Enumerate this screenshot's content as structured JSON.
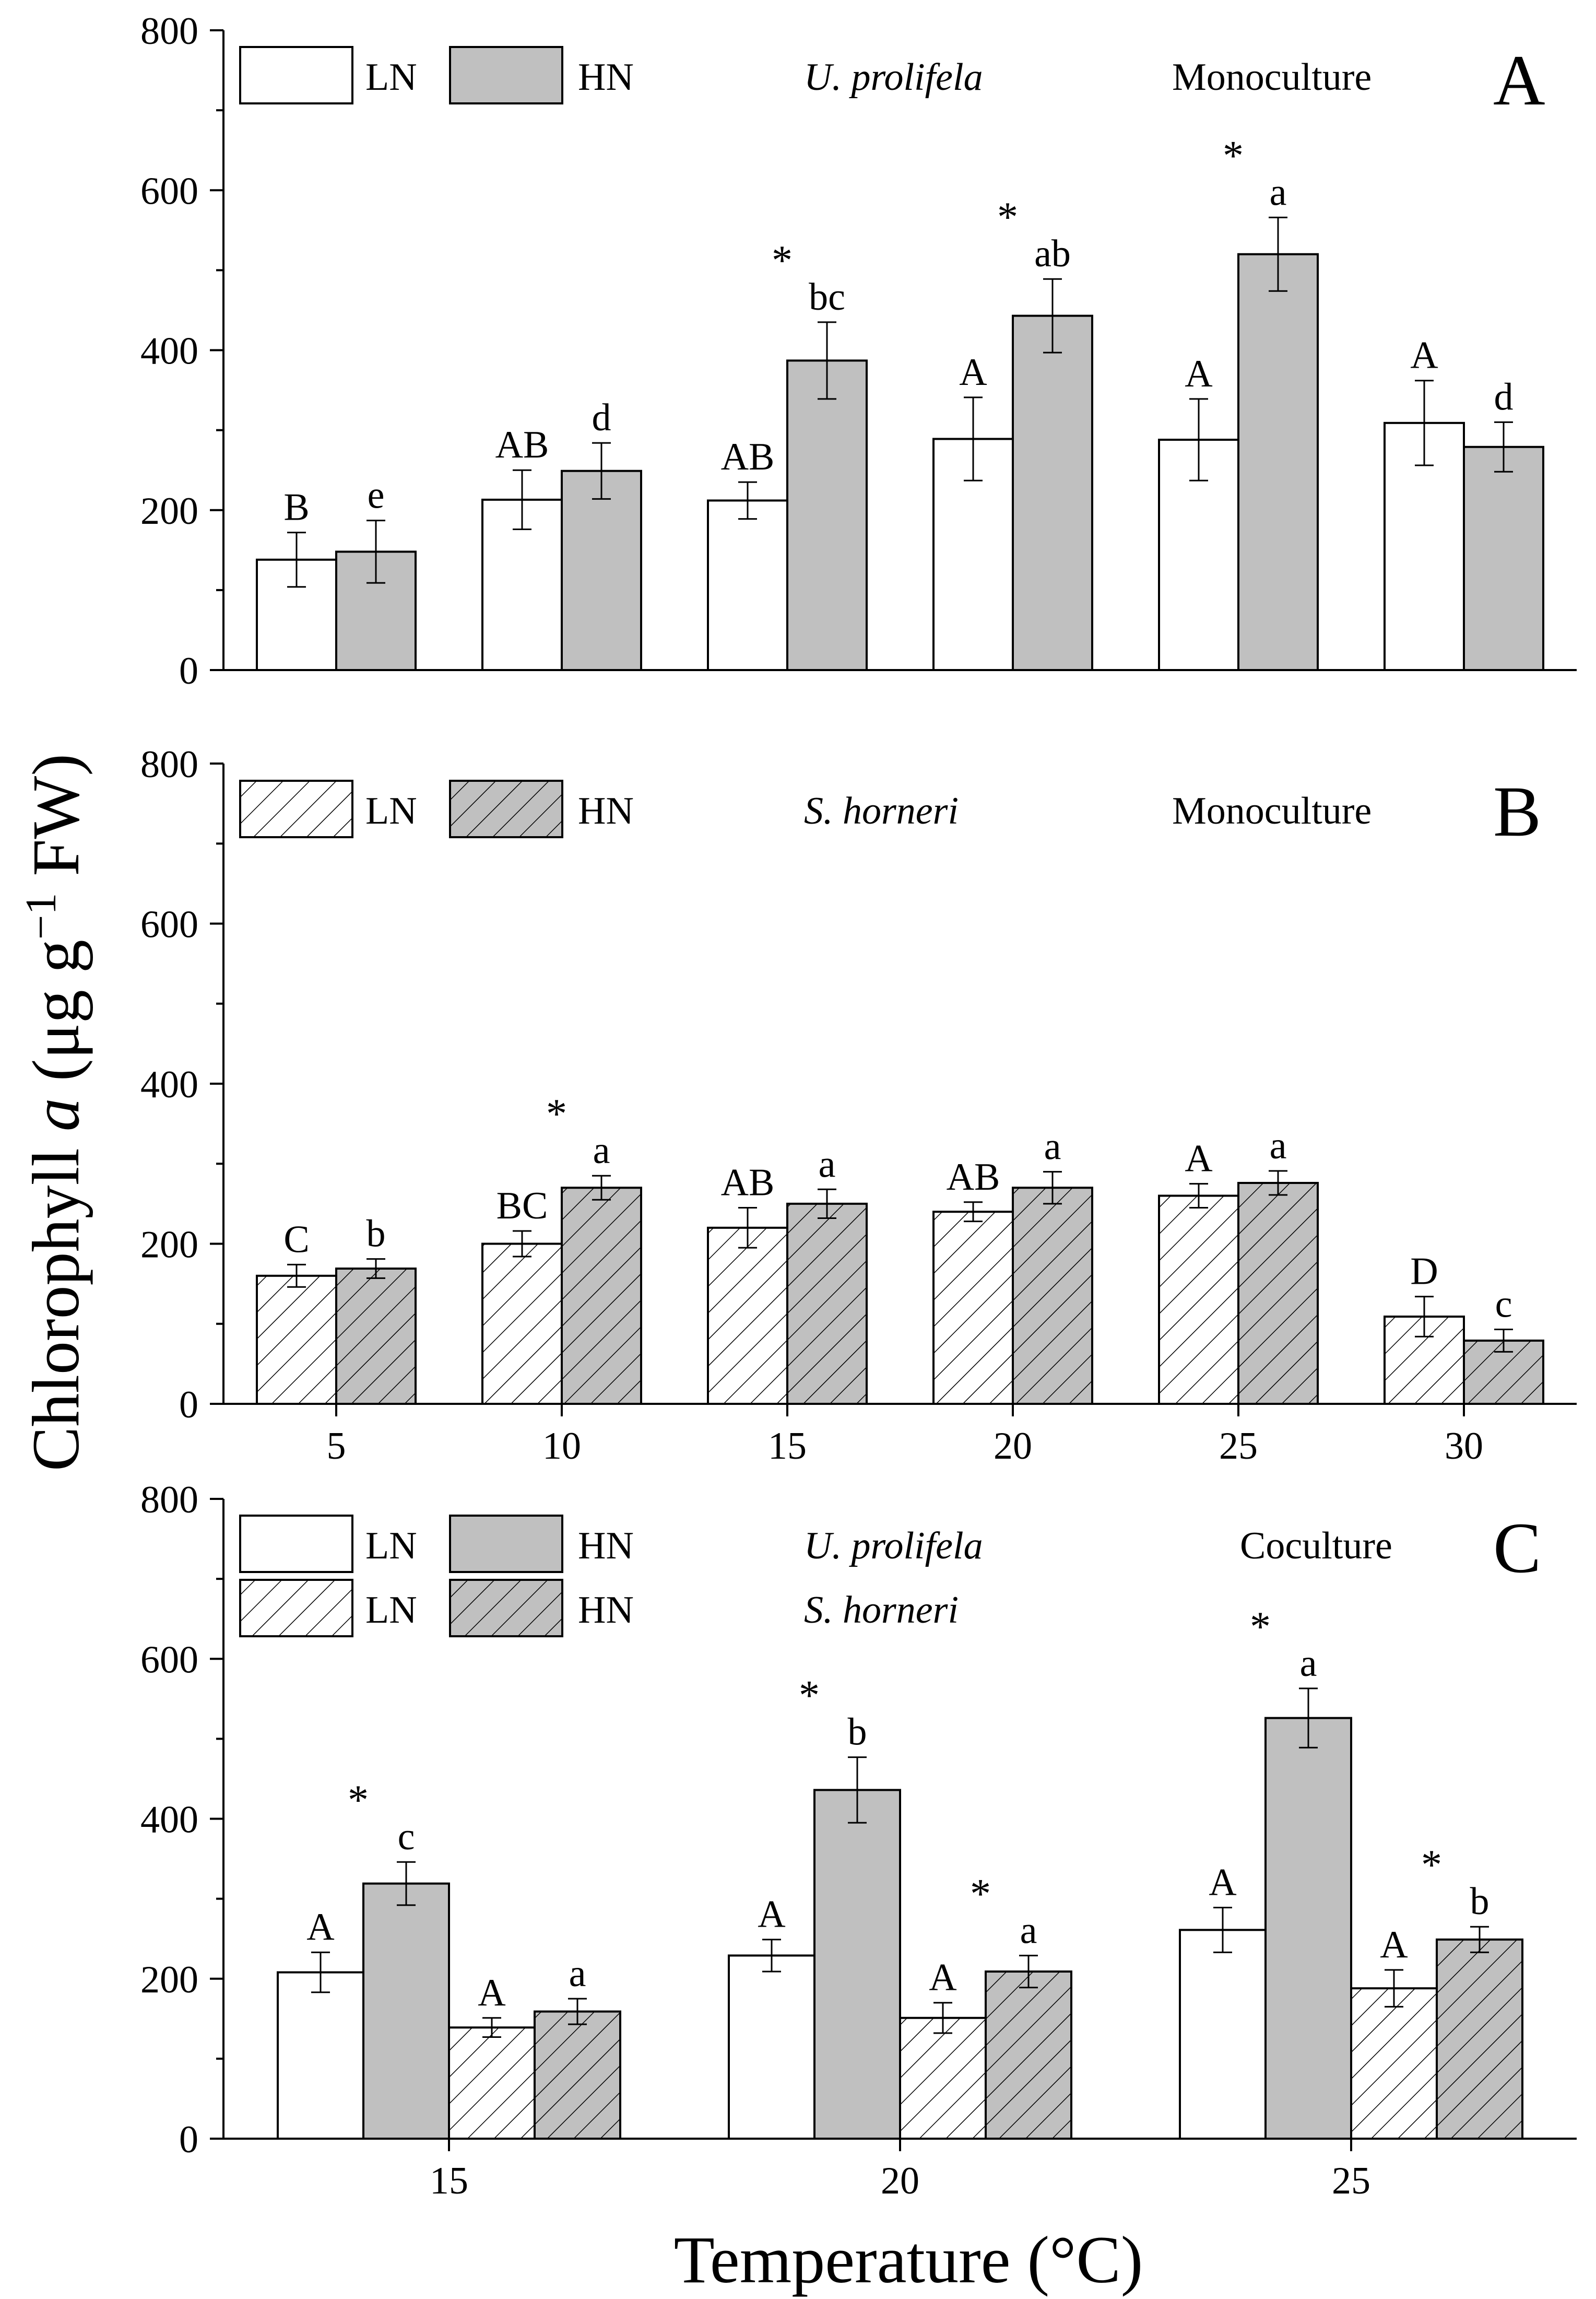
{
  "figure": {
    "ylabel": {
      "prefix": "Chlorophyll ",
      "italic": "a",
      "unit_open": " (μg g",
      "exponent": "−1",
      "unit_close": " FW)"
    },
    "xlabel": "Temperature (°C)"
  },
  "colors": {
    "ln_fill": "#ffffff",
    "hn_fill": "#c0c0c0",
    "stroke": "#000000"
  },
  "legend": {
    "ln": "LN",
    "hn": "HN"
  },
  "chart_data": [
    {
      "panel": "A",
      "type": "bar",
      "species": "U. prolifela",
      "culture": "Monoculture",
      "ylim": [
        0,
        800
      ],
      "yticks": [
        0,
        200,
        400,
        600,
        800
      ],
      "categories": [
        "5",
        "10",
        "15",
        "20",
        "25",
        "30"
      ],
      "show_category_labels": false,
      "series": [
        {
          "name": "LN",
          "hatched": false,
          "filled": false,
          "values": [
            138,
            213,
            212,
            289,
            288,
            309
          ],
          "errors": [
            34,
            37,
            23,
            52,
            51,
            53
          ],
          "letters": [
            "B",
            "AB",
            "AB",
            "A",
            "A",
            "A"
          ],
          "stars": [
            false,
            false,
            false,
            false,
            false,
            false
          ]
        },
        {
          "name": "HN",
          "hatched": false,
          "filled": true,
          "values": [
            148,
            249,
            387,
            443,
            520,
            279
          ],
          "errors": [
            39,
            35,
            48,
            46,
            46,
            31
          ],
          "letters": [
            "e",
            "d",
            "bc",
            "ab",
            "a",
            "d"
          ],
          "stars": [
            false,
            false,
            true,
            true,
            true,
            false
          ]
        }
      ]
    },
    {
      "panel": "B",
      "type": "bar",
      "species": "S. horneri",
      "culture": "Monoculture",
      "ylim": [
        0,
        800
      ],
      "yticks": [
        0,
        200,
        400,
        600,
        800
      ],
      "categories": [
        "5",
        "10",
        "15",
        "20",
        "25",
        "30"
      ],
      "show_category_labels": true,
      "series": [
        {
          "name": "LN",
          "hatched": true,
          "filled": false,
          "values": [
            160,
            200,
            220,
            240,
            260,
            109
          ],
          "errors": [
            14,
            16,
            25,
            12,
            15,
            25
          ],
          "letters": [
            "C",
            "BC",
            "AB",
            "AB",
            "A",
            "D"
          ],
          "stars": [
            false,
            false,
            false,
            false,
            false,
            false
          ]
        },
        {
          "name": "HN",
          "hatched": true,
          "filled": true,
          "values": [
            169,
            270,
            250,
            270,
            276,
            79
          ],
          "errors": [
            12,
            15,
            18,
            20,
            15,
            14
          ],
          "letters": [
            "b",
            "a",
            "a",
            "a",
            "a",
            "c"
          ],
          "stars": [
            false,
            true,
            false,
            false,
            false,
            false
          ]
        }
      ]
    },
    {
      "panel": "C",
      "type": "bar",
      "species": "U. prolifela",
      "species2": "S. horneri",
      "culture": "Coculture",
      "ylim": [
        0,
        800
      ],
      "yticks": [
        0,
        200,
        400,
        600,
        800
      ],
      "categories": [
        "15",
        "20",
        "25"
      ],
      "show_category_labels": true,
      "series": [
        {
          "name": "LN",
          "group": "U. prolifela",
          "hatched": false,
          "filled": false,
          "values": [
            208,
            229,
            261
          ],
          "errors": [
            25,
            20,
            28
          ],
          "letters": [
            "A",
            "A",
            "A"
          ],
          "stars": [
            false,
            false,
            false
          ]
        },
        {
          "name": "HN",
          "group": "U. prolifela",
          "hatched": false,
          "filled": true,
          "values": [
            319,
            436,
            526
          ],
          "errors": [
            27,
            41,
            37
          ],
          "letters": [
            "c",
            "b",
            "a"
          ],
          "stars": [
            true,
            true,
            true
          ]
        },
        {
          "name": "LN",
          "group": "S. horneri",
          "hatched": true,
          "filled": false,
          "values": [
            139,
            151,
            188
          ],
          "errors": [
            12,
            19,
            23
          ],
          "letters": [
            "A",
            "A",
            "A"
          ],
          "stars": [
            false,
            false,
            false
          ]
        },
        {
          "name": "HN",
          "group": "S. horneri",
          "hatched": true,
          "filled": true,
          "values": [
            159,
            209,
            249
          ],
          "errors": [
            16,
            20,
            16
          ],
          "letters": [
            "a",
            "a",
            "b"
          ],
          "stars": [
            false,
            true,
            true
          ]
        }
      ]
    }
  ]
}
